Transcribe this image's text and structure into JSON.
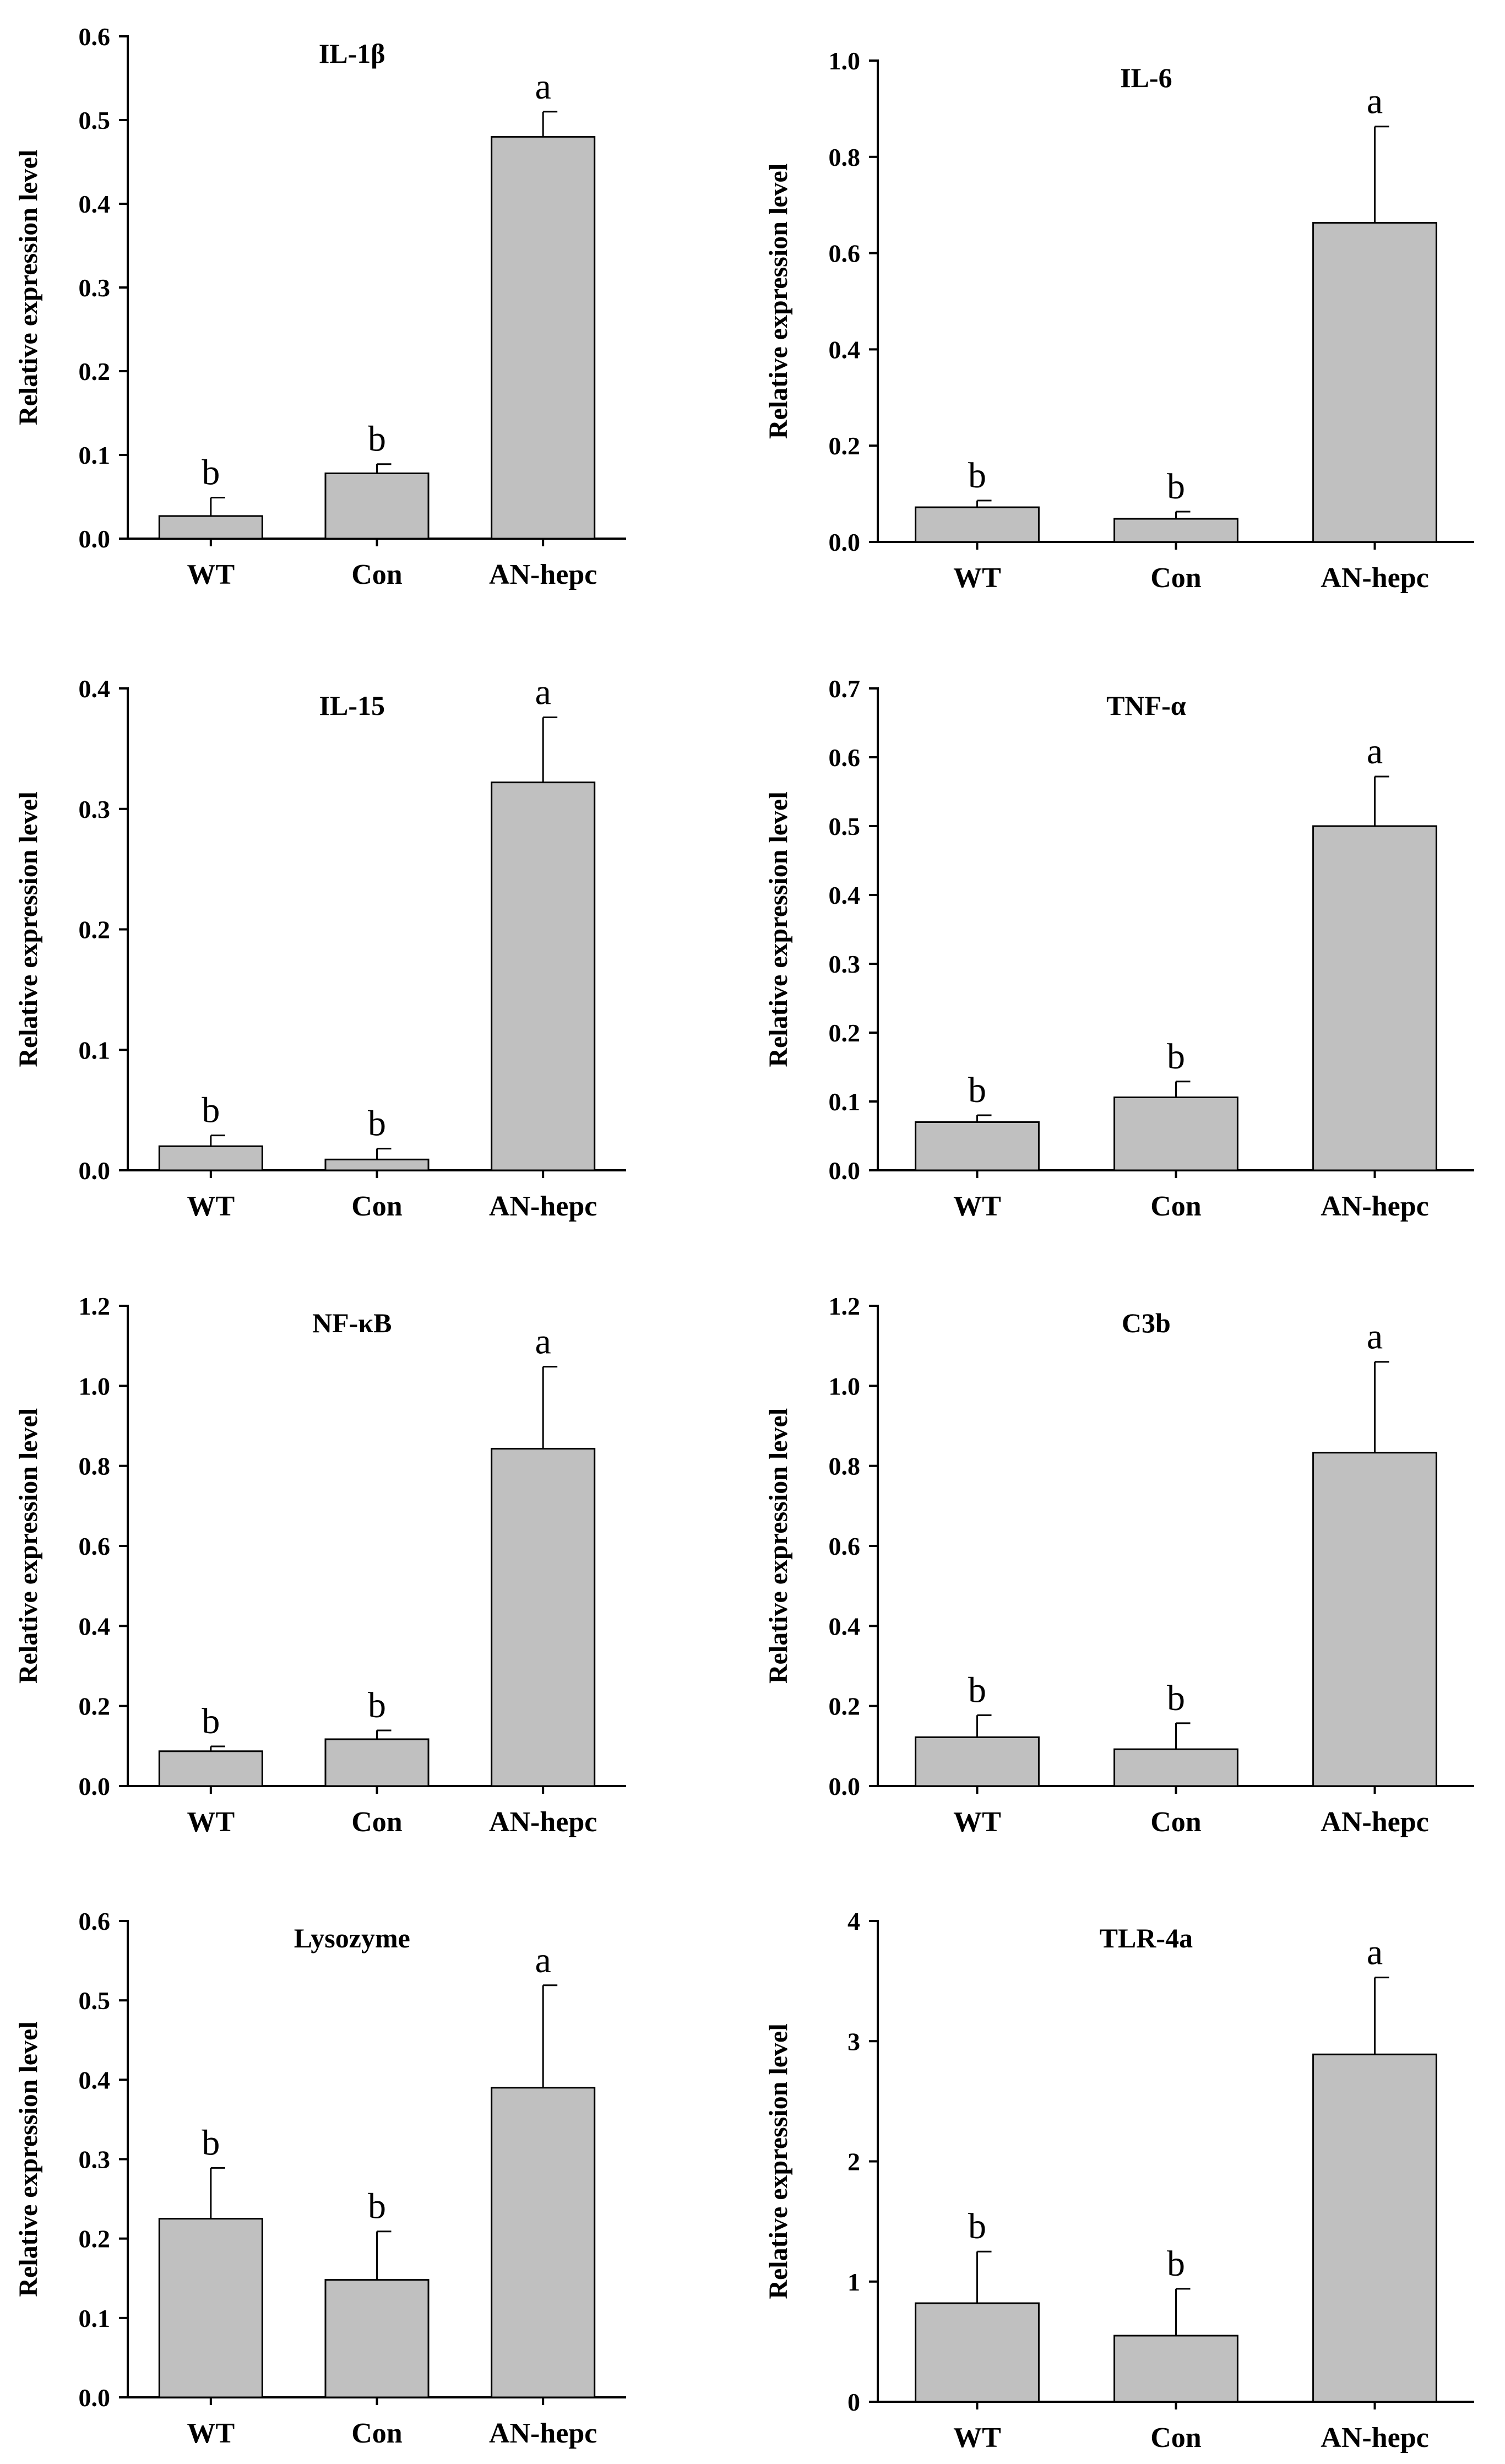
{
  "chart_data": [
    {
      "type": "bar",
      "title": "IL-1β",
      "ylabel": "Relative expression level",
      "xlabel": "",
      "categories": [
        "WT",
        "Con",
        "AN-hepc"
      ],
      "values": [
        0.027,
        0.078,
        0.48
      ],
      "errors": [
        0.022,
        0.011,
        0.03
      ],
      "significance": [
        "b",
        "b",
        "a"
      ],
      "ylim": [
        0,
        0.6
      ],
      "yticks": [
        "0.0",
        "0.1",
        "0.2",
        "0.3",
        "0.4",
        "0.5",
        "0.6"
      ],
      "bar_color": "#c0c0c0"
    },
    {
      "type": "bar",
      "title": "IL-6",
      "ylabel": "Relative expression level",
      "xlabel": "",
      "categories": [
        "WT",
        "Con",
        "AN-hepc"
      ],
      "values": [
        0.072,
        0.048,
        0.663
      ],
      "errors": [
        0.014,
        0.015,
        0.2
      ],
      "significance": [
        "b",
        "b",
        "a"
      ],
      "ylim": [
        0,
        1.0
      ],
      "yticks": [
        "0.0",
        "0.2",
        "0.4",
        "0.6",
        "0.8",
        "1.0"
      ],
      "bar_color": "#c0c0c0"
    },
    {
      "type": "bar",
      "title": "IL-15",
      "ylabel": "Relative expression level",
      "xlabel": "",
      "categories": [
        "WT",
        "Con",
        "AN-hepc"
      ],
      "values": [
        0.02,
        0.009,
        0.322
      ],
      "errors": [
        0.009,
        0.009,
        0.054
      ],
      "significance": [
        "b",
        "b",
        "a"
      ],
      "ylim": [
        0,
        0.4
      ],
      "yticks": [
        "0.0",
        "0.1",
        "0.2",
        "0.3",
        "0.4"
      ],
      "bar_color": "#c0c0c0"
    },
    {
      "type": "bar",
      "title": "TNF-α",
      "ylabel": "Relative expression level",
      "xlabel": "",
      "categories": [
        "WT",
        "Con",
        "AN-hepc"
      ],
      "values": [
        0.07,
        0.106,
        0.5
      ],
      "errors": [
        0.01,
        0.023,
        0.072
      ],
      "significance": [
        "b",
        "b",
        "a"
      ],
      "ylim": [
        0,
        0.7
      ],
      "yticks": [
        "0.0",
        "0.1",
        "0.2",
        "0.3",
        "0.4",
        "0.5",
        "0.6",
        "0.7"
      ],
      "bar_color": "#c0c0c0"
    },
    {
      "type": "bar",
      "title": "NF-κB",
      "ylabel": "Relative expression level",
      "xlabel": "",
      "categories": [
        "WT",
        "Con",
        "AN-hepc"
      ],
      "values": [
        0.087,
        0.117,
        0.843
      ],
      "errors": [
        0.012,
        0.022,
        0.205
      ],
      "significance": [
        "b",
        "b",
        "a"
      ],
      "ylim": [
        0,
        1.2
      ],
      "yticks": [
        "0.0",
        "0.2",
        "0.4",
        "0.6",
        "0.8",
        "1.0",
        "1.2"
      ],
      "bar_color": "#c0c0c0"
    },
    {
      "type": "bar",
      "title": "C3b",
      "ylabel": "Relative expression level",
      "xlabel": "",
      "categories": [
        "WT",
        "Con",
        "AN-hepc"
      ],
      "values": [
        0.122,
        0.092,
        0.833
      ],
      "errors": [
        0.055,
        0.065,
        0.227
      ],
      "significance": [
        "b",
        "b",
        "a"
      ],
      "ylim": [
        0,
        1.2
      ],
      "yticks": [
        "0.0",
        "0.2",
        "0.4",
        "0.6",
        "0.8",
        "1.0",
        "1.2"
      ],
      "bar_color": "#c0c0c0"
    },
    {
      "type": "bar",
      "title": "Lysozyme",
      "ylabel": "Relative expression level",
      "xlabel": "",
      "categories": [
        "WT",
        "Con",
        "AN-hepc"
      ],
      "values": [
        0.225,
        0.148,
        0.39
      ],
      "errors": [
        0.064,
        0.061,
        0.129
      ],
      "significance": [
        "b",
        "b",
        "a"
      ],
      "ylim": [
        0,
        0.6
      ],
      "yticks": [
        "0.0",
        "0.1",
        "0.2",
        "0.3",
        "0.4",
        "0.5",
        "0.6"
      ],
      "bar_color": "#c0c0c0"
    },
    {
      "type": "bar",
      "title": "TLR-4a",
      "ylabel": "Relative expression level",
      "xlabel": "",
      "categories": [
        "WT",
        "Con",
        "AN-hepc"
      ],
      "values": [
        0.82,
        0.55,
        2.89
      ],
      "errors": [
        0.43,
        0.39,
        0.64
      ],
      "significance": [
        "b",
        "b",
        "a"
      ],
      "ylim": [
        0,
        4
      ],
      "yticks": [
        "0",
        "1",
        "2",
        "3",
        "4"
      ],
      "bar_color": "#c0c0c0"
    }
  ]
}
